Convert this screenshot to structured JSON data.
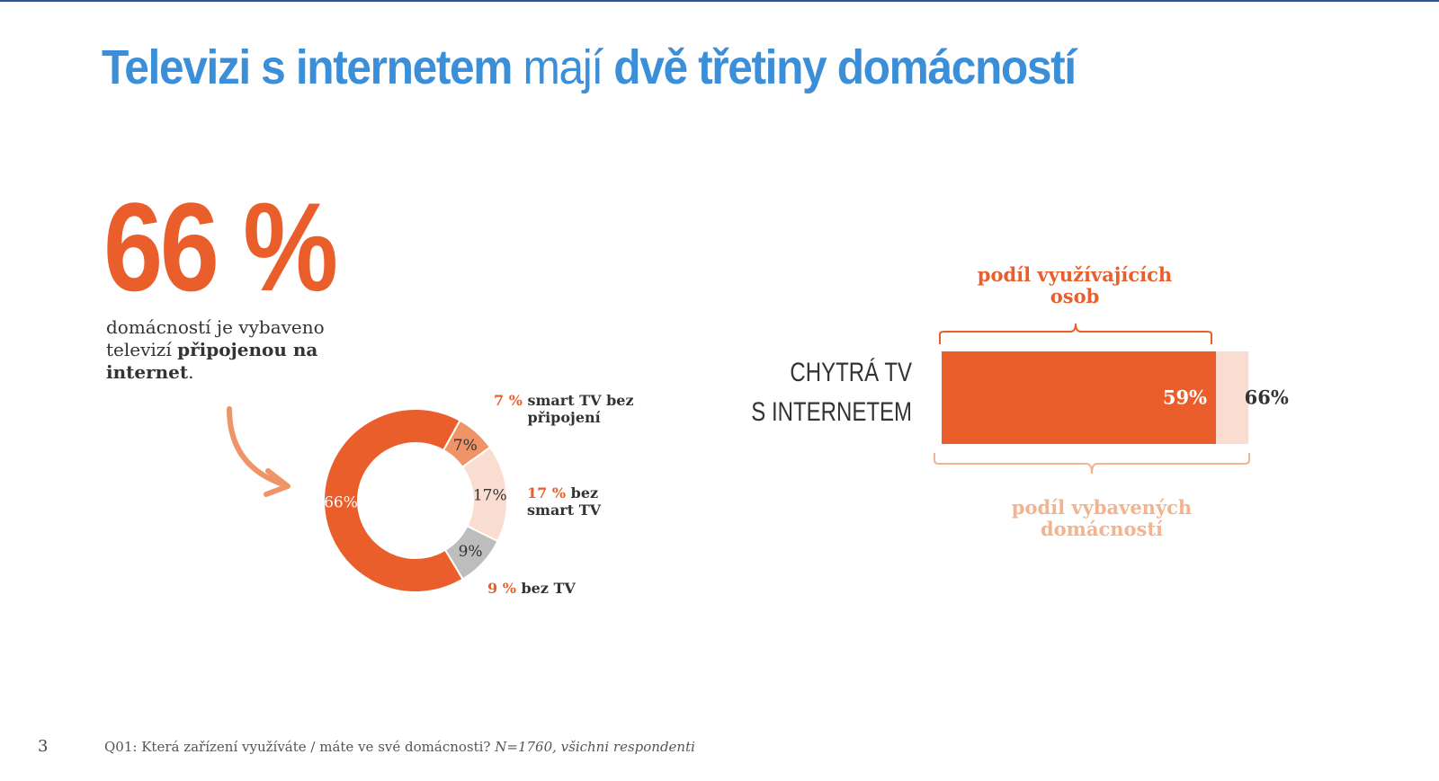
{
  "title": {
    "part1": "Televizi s internetem",
    "part2": "mají",
    "part3": "dvě třetiny domácností"
  },
  "headline": {
    "value": "66 %",
    "text_pre": "domácností je vybaveno televizí ",
    "text_bold": "připojenou na internet",
    "text_post": "."
  },
  "colors": {
    "accent": "#e95e2a",
    "title": "#3b8fd9",
    "light": "#f8ddd0",
    "mid": "#ef9466",
    "gray": "#bdbdbd"
  },
  "chart_data": [
    {
      "type": "pie",
      "variant": "donut",
      "slices": [
        {
          "label": "smart TV bez připojení",
          "value": 7,
          "pct_label": "7 %",
          "data_label": "7%",
          "color": "#ef9466"
        },
        {
          "label": "bez smart TV",
          "value": 17,
          "pct_label": "17 %",
          "data_label": "17%",
          "color": "#f8ddd0"
        },
        {
          "label": "bez TV",
          "value": 9,
          "pct_label": "9 %",
          "data_label": "9%",
          "color": "#bdbdbd"
        },
        {
          "label": "",
          "value": 66,
          "data_label": "66%",
          "color": "#e95e2a"
        }
      ]
    },
    {
      "type": "bar",
      "orientation": "horizontal",
      "categories": [
        "CHYTRÁ TV S INTERNETEM"
      ],
      "category_lines": [
        "CHYTRÁ TV",
        "S INTERNETEM"
      ],
      "series": [
        {
          "name": "podíl využívajících osob",
          "values": [
            59
          ],
          "data_label": "59%",
          "color": "#e95e2a"
        },
        {
          "name": "podíl vybavených domácností",
          "values": [
            66
          ],
          "data_label": "66%",
          "color": "#f8ddd0"
        }
      ]
    }
  ],
  "footer": {
    "page": "3",
    "question": "Q01: Která zařízení využíváte / máte ve své domácnosti? ",
    "note": "N=1760, všichni respondenti"
  }
}
